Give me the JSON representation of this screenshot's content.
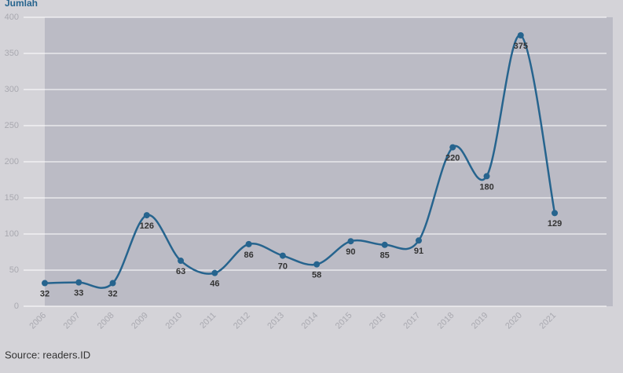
{
  "chart_data": {
    "type": "line",
    "y_label": "Jumlah",
    "source": "Source: readers.ID",
    "categories": [
      "2006",
      "2007",
      "2008",
      "2009",
      "2010",
      "2011",
      "2012",
      "2013",
      "2014",
      "2015",
      "2016",
      "2017",
      "2018",
      "2019",
      "2020",
      "2021"
    ],
    "series": [
      {
        "name": "Jumlah",
        "color": "#26648e",
        "values": [
          32,
          33,
          32,
          126,
          63,
          46,
          86,
          70,
          58,
          90,
          85,
          91,
          220,
          180,
          375,
          129
        ]
      }
    ],
    "ylim": [
      0,
      400
    ],
    "yticks": [
      0,
      50,
      100,
      150,
      200,
      250,
      300,
      350,
      400
    ],
    "grid": true
  }
}
